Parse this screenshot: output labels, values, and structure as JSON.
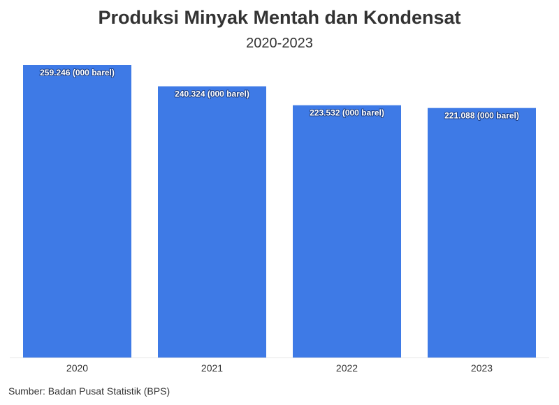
{
  "chart_data": {
    "type": "bar",
    "title": "Produksi Minyak Mentah dan Kondensat",
    "subtitle": "2020-2023",
    "categories": [
      "2020",
      "2021",
      "2022",
      "2023"
    ],
    "values": [
      259.246,
      240.324,
      223.532,
      221.088
    ],
    "data_labels": [
      "259.246 (000 barel)",
      "240.324 (000 barel)",
      "223.532 (000 barel)",
      "221.088 (000 barel)"
    ],
    "ylim": [
      0,
      259.246
    ],
    "grid": false,
    "bar_color": "#3e7ae6"
  },
  "source": "Sumber: Badan Pusat Statistik (BPS)"
}
